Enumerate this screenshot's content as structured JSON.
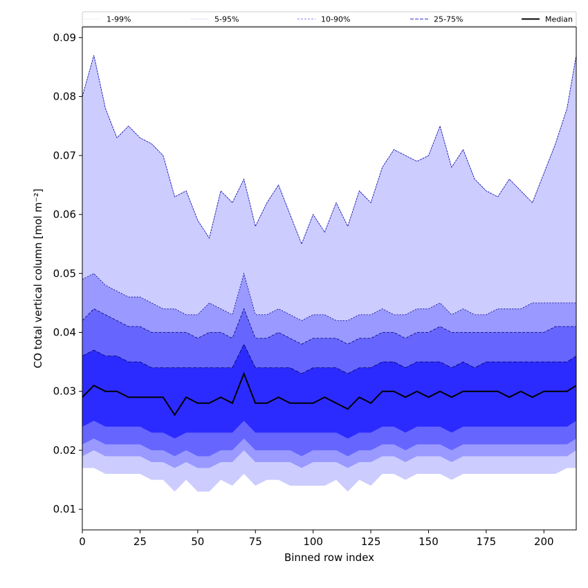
{
  "chart_data": {
    "type": "area",
    "xlabel": "Binned row index",
    "ylabel": "CO total vertical column [mol m⁻²]",
    "xlim": [
      0,
      214
    ],
    "ylim": [
      0.0065,
      0.0918
    ],
    "xticks": [
      0,
      25,
      50,
      75,
      100,
      125,
      150,
      175,
      200
    ],
    "yticks": [
      0.01,
      0.02,
      0.03,
      0.04,
      0.05,
      0.06,
      0.07,
      0.08,
      0.09
    ],
    "ytick_labels": [
      "0.01",
      "0.02",
      "0.03",
      "0.04",
      "0.05",
      "0.06",
      "0.07",
      "0.08",
      "0.09"
    ],
    "grid": false,
    "legend_position": "top",
    "legend": [
      "1-99%",
      "5-95%",
      "10-90%",
      "25-75%",
      "Median"
    ],
    "band_colors": [
      "#ccccff",
      "#9999ff",
      "#6666ff",
      "#2b2bff"
    ],
    "median_color": "#000000",
    "x_step": 5,
    "series": [
      {
        "name": "99%",
        "values": [
          0.08,
          0.087,
          0.078,
          0.073,
          0.075,
          0.073,
          0.072,
          0.07,
          0.063,
          0.064,
          0.059,
          0.056,
          0.064,
          0.062,
          0.066,
          0.058,
          0.062,
          0.065,
          0.06,
          0.055,
          0.06,
          0.057,
          0.062,
          0.058,
          0.064,
          0.062,
          0.068,
          0.071,
          0.07,
          0.069,
          0.07,
          0.075,
          0.068,
          0.071,
          0.066,
          0.064,
          0.063,
          0.066,
          0.064,
          0.062,
          0.067,
          0.072,
          0.078,
          0.087
        ]
      },
      {
        "name": "95%",
        "values": [
          0.049,
          0.05,
          0.048,
          0.047,
          0.046,
          0.046,
          0.045,
          0.044,
          0.044,
          0.043,
          0.043,
          0.045,
          0.044,
          0.043,
          0.05,
          0.043,
          0.043,
          0.044,
          0.043,
          0.042,
          0.043,
          0.043,
          0.042,
          0.042,
          0.043,
          0.043,
          0.044,
          0.043,
          0.043,
          0.044,
          0.044,
          0.045,
          0.043,
          0.044,
          0.043,
          0.043,
          0.044,
          0.044,
          0.044,
          0.045,
          0.045,
          0.045,
          0.045,
          0.045
        ]
      },
      {
        "name": "90%",
        "values": [
          0.042,
          0.044,
          0.043,
          0.042,
          0.041,
          0.041,
          0.04,
          0.04,
          0.04,
          0.04,
          0.039,
          0.04,
          0.04,
          0.039,
          0.044,
          0.039,
          0.039,
          0.04,
          0.039,
          0.038,
          0.039,
          0.039,
          0.039,
          0.038,
          0.039,
          0.039,
          0.04,
          0.04,
          0.039,
          0.04,
          0.04,
          0.041,
          0.04,
          0.04,
          0.04,
          0.04,
          0.04,
          0.04,
          0.04,
          0.04,
          0.04,
          0.041,
          0.041,
          0.041
        ]
      },
      {
        "name": "75%",
        "values": [
          0.036,
          0.037,
          0.036,
          0.036,
          0.035,
          0.035,
          0.034,
          0.034,
          0.034,
          0.034,
          0.034,
          0.034,
          0.034,
          0.034,
          0.038,
          0.034,
          0.034,
          0.034,
          0.034,
          0.033,
          0.034,
          0.034,
          0.034,
          0.033,
          0.034,
          0.034,
          0.035,
          0.035,
          0.034,
          0.035,
          0.035,
          0.035,
          0.034,
          0.035,
          0.034,
          0.035,
          0.035,
          0.035,
          0.035,
          0.035,
          0.035,
          0.035,
          0.035,
          0.036
        ]
      },
      {
        "name": "Median",
        "values": [
          0.029,
          0.031,
          0.03,
          0.03,
          0.029,
          0.029,
          0.029,
          0.029,
          0.026,
          0.029,
          0.028,
          0.028,
          0.029,
          0.028,
          0.033,
          0.028,
          0.028,
          0.029,
          0.028,
          0.028,
          0.028,
          0.029,
          0.028,
          0.027,
          0.029,
          0.028,
          0.03,
          0.03,
          0.029,
          0.03,
          0.029,
          0.03,
          0.029,
          0.03,
          0.03,
          0.03,
          0.03,
          0.029,
          0.03,
          0.029,
          0.03,
          0.03,
          0.03,
          0.031
        ]
      },
      {
        "name": "25%",
        "values": [
          0.024,
          0.025,
          0.024,
          0.024,
          0.024,
          0.024,
          0.023,
          0.023,
          0.022,
          0.023,
          0.023,
          0.023,
          0.023,
          0.023,
          0.025,
          0.023,
          0.023,
          0.023,
          0.023,
          0.023,
          0.023,
          0.023,
          0.023,
          0.022,
          0.023,
          0.023,
          0.024,
          0.024,
          0.023,
          0.024,
          0.024,
          0.024,
          0.023,
          0.024,
          0.024,
          0.024,
          0.024,
          0.024,
          0.024,
          0.024,
          0.024,
          0.024,
          0.024,
          0.025
        ]
      },
      {
        "name": "10%",
        "values": [
          0.021,
          0.022,
          0.021,
          0.021,
          0.021,
          0.021,
          0.02,
          0.02,
          0.019,
          0.02,
          0.019,
          0.019,
          0.02,
          0.02,
          0.022,
          0.02,
          0.02,
          0.02,
          0.02,
          0.019,
          0.02,
          0.02,
          0.02,
          0.019,
          0.02,
          0.02,
          0.021,
          0.021,
          0.02,
          0.021,
          0.021,
          0.021,
          0.02,
          0.021,
          0.021,
          0.021,
          0.021,
          0.021,
          0.021,
          0.021,
          0.021,
          0.021,
          0.021,
          0.022
        ]
      },
      {
        "name": "5%",
        "values": [
          0.019,
          0.02,
          0.019,
          0.019,
          0.019,
          0.019,
          0.018,
          0.018,
          0.017,
          0.018,
          0.017,
          0.017,
          0.018,
          0.018,
          0.02,
          0.018,
          0.018,
          0.018,
          0.018,
          0.017,
          0.018,
          0.018,
          0.018,
          0.017,
          0.018,
          0.018,
          0.019,
          0.019,
          0.018,
          0.019,
          0.019,
          0.019,
          0.018,
          0.019,
          0.019,
          0.019,
          0.019,
          0.019,
          0.019,
          0.019,
          0.019,
          0.019,
          0.019,
          0.02
        ]
      },
      {
        "name": "1%",
        "values": [
          0.017,
          0.017,
          0.016,
          0.016,
          0.016,
          0.016,
          0.015,
          0.015,
          0.013,
          0.015,
          0.013,
          0.013,
          0.015,
          0.014,
          0.016,
          0.014,
          0.015,
          0.015,
          0.014,
          0.014,
          0.014,
          0.014,
          0.015,
          0.013,
          0.015,
          0.014,
          0.016,
          0.016,
          0.015,
          0.016,
          0.016,
          0.016,
          0.015,
          0.016,
          0.016,
          0.016,
          0.016,
          0.016,
          0.016,
          0.016,
          0.016,
          0.016,
          0.017,
          0.017
        ]
      }
    ]
  }
}
